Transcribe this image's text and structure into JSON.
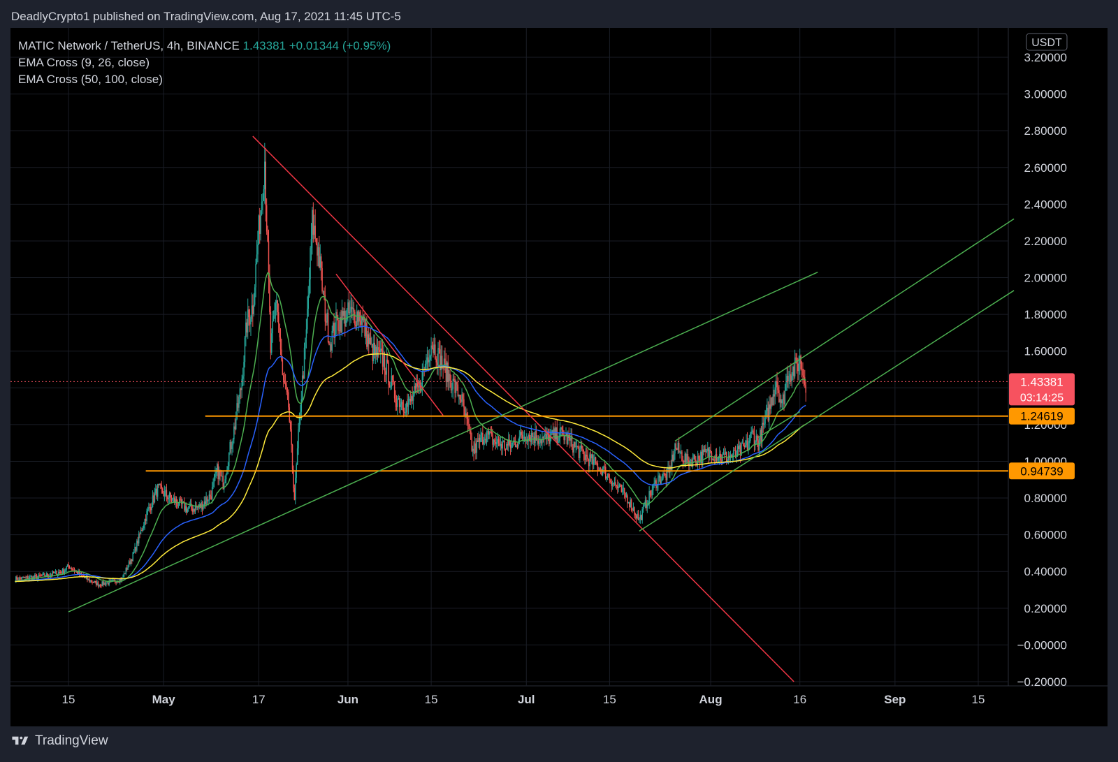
{
  "header": {
    "publish_line": "DeadlyCrypto1 published on TradingView.com, Aug 17, 2021 11:45 UTC-5"
  },
  "legend": {
    "symbol": "MATIC Network / TetherUS, 4h, BINANCE",
    "price": "1.43381",
    "change": "+0.01344 (+0.95%)",
    "ema1": "EMA Cross (9, 26, close)",
    "ema2": "EMA Cross (50, 100, close)"
  },
  "footer": {
    "brand": "TradingView",
    "logo_icon": "tradingview-logo-icon"
  },
  "colors": {
    "background": "#000000",
    "page": "#1e222d",
    "grid": "#1a1d26",
    "up_candle": "#26a69a",
    "down_candle": "#ef5350",
    "ema9": "#4caf50",
    "ema26": "#2962ff",
    "ema50": "#ffeb3b",
    "trend_red": "#f23645",
    "trend_green": "#4caf50",
    "support_orange": "#ff9800",
    "price_label": "#f7525f"
  },
  "chart_data": {
    "type": "candlestick",
    "symbol": "MATIC Network / TetherUS",
    "timeframe": "4h",
    "exchange": "BINANCE",
    "currency_label": "USDT",
    "ylim": [
      -0.2,
      3.26
    ],
    "y_ticks": [
      "3.20000",
      "3.00000",
      "2.80000",
      "2.60000",
      "2.40000",
      "2.20000",
      "2.00000",
      "1.80000",
      "1.60000",
      "1.40000",
      "1.20000",
      "1.00000",
      "0.80000",
      "0.60000",
      "0.40000",
      "0.20000",
      "−0.00000",
      "−0.20000"
    ],
    "y_tick_values": [
      3.2,
      3.0,
      2.8,
      2.6,
      2.4,
      2.2,
      2.0,
      1.8,
      1.6,
      1.4,
      1.2,
      1.0,
      0.8,
      0.6,
      0.4,
      0.2,
      0.0,
      -0.2
    ],
    "x_ticks": [
      {
        "label": "15",
        "date": "2021-04-15",
        "bold": false
      },
      {
        "label": "May",
        "date": "2021-05-01",
        "bold": true
      },
      {
        "label": "17",
        "date": "2021-05-17",
        "bold": false
      },
      {
        "label": "Jun",
        "date": "2021-06-01",
        "bold": true
      },
      {
        "label": "15",
        "date": "2021-06-15",
        "bold": false
      },
      {
        "label": "Jul",
        "date": "2021-07-01",
        "bold": true
      },
      {
        "label": "15",
        "date": "2021-07-15",
        "bold": false
      },
      {
        "label": "Aug",
        "date": "2021-08-01",
        "bold": true
      },
      {
        "label": "16",
        "date": "2021-08-16",
        "bold": false
      },
      {
        "label": "Sep",
        "date": "2021-09-01",
        "bold": true
      },
      {
        "label": "15",
        "date": "2021-09-15",
        "bold": false
      }
    ],
    "price_path": [
      [
        "2021-04-06",
        0.36
      ],
      [
        "2021-04-10",
        0.37
      ],
      [
        "2021-04-14",
        0.4
      ],
      [
        "2021-04-15",
        0.43
      ],
      [
        "2021-04-18",
        0.36
      ],
      [
        "2021-04-20",
        0.33
      ],
      [
        "2021-04-22",
        0.34
      ],
      [
        "2021-04-24",
        0.36
      ],
      [
        "2021-04-26",
        0.5
      ],
      [
        "2021-04-28",
        0.7
      ],
      [
        "2021-04-30",
        0.85
      ],
      [
        "2021-05-03",
        0.78
      ],
      [
        "2021-05-05",
        0.74
      ],
      [
        "2021-05-07",
        0.75
      ],
      [
        "2021-05-09",
        0.82
      ],
      [
        "2021-05-10",
        0.95
      ],
      [
        "2021-05-11",
        0.88
      ],
      [
        "2021-05-13",
        1.2
      ],
      [
        "2021-05-14",
        1.4
      ],
      [
        "2021-05-15",
        1.75
      ],
      [
        "2021-05-16",
        1.85
      ],
      [
        "2021-05-17",
        2.25
      ],
      [
        "2021-05-18",
        2.65
      ],
      [
        "2021-05-19",
        1.6
      ],
      [
        "2021-05-20",
        1.9
      ],
      [
        "2021-05-21",
        1.45
      ],
      [
        "2021-05-22",
        1.3
      ],
      [
        "2021-05-23",
        0.8
      ],
      [
        "2021-05-24",
        1.3
      ],
      [
        "2021-05-25",
        1.7
      ],
      [
        "2021-05-26",
        2.3
      ],
      [
        "2021-05-27",
        2.15
      ],
      [
        "2021-05-28",
        1.85
      ],
      [
        "2021-05-29",
        1.65
      ],
      [
        "2021-05-30",
        1.75
      ],
      [
        "2021-06-01",
        1.8
      ],
      [
        "2021-06-03",
        1.8
      ],
      [
        "2021-06-05",
        1.6
      ],
      [
        "2021-06-07",
        1.55
      ],
      [
        "2021-06-09",
        1.35
      ],
      [
        "2021-06-11",
        1.3
      ],
      [
        "2021-06-13",
        1.4
      ],
      [
        "2021-06-15",
        1.65
      ],
      [
        "2021-06-17",
        1.52
      ],
      [
        "2021-06-19",
        1.4
      ],
      [
        "2021-06-20",
        1.35
      ],
      [
        "2021-06-21",
        1.2
      ],
      [
        "2021-06-22",
        1.05
      ],
      [
        "2021-06-24",
        1.15
      ],
      [
        "2021-06-26",
        1.1
      ],
      [
        "2021-06-28",
        1.08
      ],
      [
        "2021-07-01",
        1.15
      ],
      [
        "2021-07-04",
        1.12
      ],
      [
        "2021-07-07",
        1.15
      ],
      [
        "2021-07-10",
        1.05
      ],
      [
        "2021-07-12",
        1.0
      ],
      [
        "2021-07-14",
        0.95
      ],
      [
        "2021-07-16",
        0.87
      ],
      [
        "2021-07-18",
        0.8
      ],
      [
        "2021-07-20",
        0.68
      ],
      [
        "2021-07-21",
        0.76
      ],
      [
        "2021-07-23",
        0.9
      ],
      [
        "2021-07-25",
        0.93
      ],
      [
        "2021-07-26",
        1.08
      ],
      [
        "2021-07-28",
        1.0
      ],
      [
        "2021-07-30",
        1.02
      ],
      [
        "2021-08-01",
        1.05
      ],
      [
        "2021-08-03",
        1.02
      ],
      [
        "2021-08-05",
        1.03
      ],
      [
        "2021-08-07",
        1.08
      ],
      [
        "2021-08-08",
        1.15
      ],
      [
        "2021-08-09",
        1.1
      ],
      [
        "2021-08-10",
        1.2
      ],
      [
        "2021-08-11",
        1.3
      ],
      [
        "2021-08-12",
        1.45
      ],
      [
        "2021-08-13",
        1.3
      ],
      [
        "2021-08-14",
        1.48
      ],
      [
        "2021-08-15",
        1.5
      ],
      [
        "2021-08-16",
        1.55
      ],
      [
        "2021-08-17",
        1.43
      ]
    ],
    "ema_spans": [
      9,
      26,
      50
    ],
    "trendlines": [
      {
        "color": "red",
        "from": [
          "2021-05-16",
          2.77
        ],
        "to": [
          "2021-08-15",
          -0.2
        ]
      },
      {
        "color": "red",
        "from": [
          "2021-05-30",
          2.02
        ],
        "to": [
          "2021-06-17",
          1.25
        ]
      },
      {
        "color": "green",
        "from": [
          "2021-04-15",
          0.18
        ],
        "to": [
          "2021-08-19",
          2.03
        ]
      },
      {
        "color": "green",
        "from": [
          "2021-07-20",
          0.62
        ],
        "to": [
          "2021-09-21",
          1.93
        ]
      },
      {
        "color": "green",
        "from": [
          "2021-07-26",
          1.11
        ],
        "to": [
          "2021-09-21",
          2.32
        ]
      },
      {
        "color": "green",
        "from": [
          "2021-08-09",
          1.13
        ],
        "to": [
          "2021-08-16",
          1.27
        ]
      }
    ],
    "horizontal_levels": [
      {
        "value": 1.24619,
        "label": "1.24619",
        "from": "2021-05-08"
      },
      {
        "value": 0.94739,
        "label": "0.94739",
        "from": "2021-04-28"
      }
    ],
    "current_price": {
      "value": 1.43381,
      "label": "1.43381",
      "countdown": "03:14:25"
    }
  }
}
